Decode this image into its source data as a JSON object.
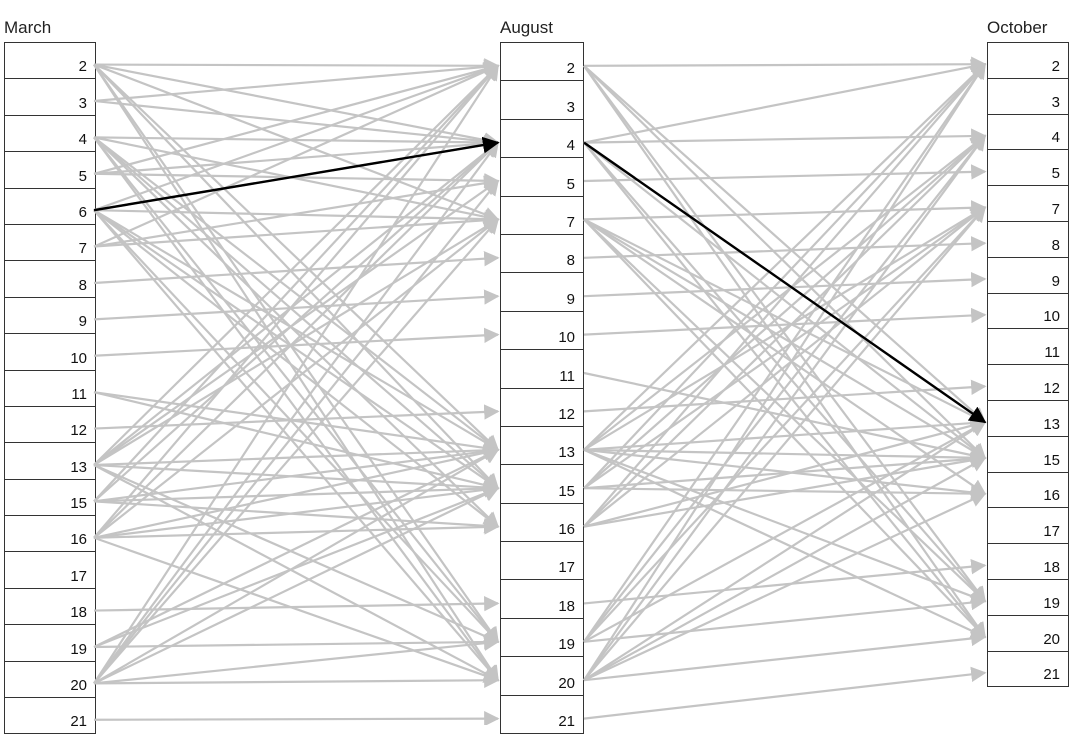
{
  "columns": [
    {
      "title": "March",
      "rows": [
        "2",
        "3",
        "4",
        "5",
        "6",
        "7",
        "8",
        "9",
        "10",
        "11",
        "12",
        "13",
        "15",
        "16",
        "17",
        "18",
        "19",
        "20",
        "21"
      ]
    },
    {
      "title": "August",
      "rows": [
        "2",
        "3",
        "4",
        "5",
        "7",
        "8",
        "9",
        "10",
        "11",
        "12",
        "13",
        "15",
        "16",
        "17",
        "18",
        "19",
        "20",
        "21"
      ]
    },
    {
      "title": "October",
      "rows": [
        "2",
        "3",
        "4",
        "5",
        "7",
        "8",
        "9",
        "10",
        "11",
        "12",
        "13",
        "15",
        "16",
        "17",
        "18",
        "19",
        "20",
        "21"
      ]
    }
  ],
  "colors": {
    "default_arrow": "#c4c4c4",
    "highlight_arrow": "#000000",
    "cell_border": "#333333"
  },
  "highlighted_path": [
    {
      "from": "March 6",
      "to": "August 4"
    },
    {
      "from": "August 4",
      "to": "October 13"
    }
  ],
  "edges_march_august": [
    [
      "2",
      "2"
    ],
    [
      "2",
      "4"
    ],
    [
      "2",
      "7"
    ],
    [
      "2",
      "13"
    ],
    [
      "2",
      "15"
    ],
    [
      "2",
      "19"
    ],
    [
      "2",
      "20"
    ],
    [
      "3",
      "4"
    ],
    [
      "3",
      "2"
    ],
    [
      "4",
      "4"
    ],
    [
      "4",
      "7"
    ],
    [
      "4",
      "13"
    ],
    [
      "4",
      "15"
    ],
    [
      "4",
      "16"
    ],
    [
      "4",
      "19"
    ],
    [
      "4",
      "20"
    ],
    [
      "5",
      "2"
    ],
    [
      "5",
      "5"
    ],
    [
      "5",
      "4"
    ],
    [
      "6",
      "4"
    ],
    [
      "6",
      "7"
    ],
    [
      "6",
      "13"
    ],
    [
      "6",
      "15"
    ],
    [
      "6",
      "16"
    ],
    [
      "6",
      "19"
    ],
    [
      "6",
      "20"
    ],
    [
      "6",
      "2"
    ],
    [
      "7",
      "2"
    ],
    [
      "7",
      "5"
    ],
    [
      "7",
      "7"
    ],
    [
      "8",
      "8"
    ],
    [
      "9",
      "9"
    ],
    [
      "10",
      "10"
    ],
    [
      "11",
      "13"
    ],
    [
      "11",
      "15"
    ],
    [
      "12",
      "12"
    ],
    [
      "13",
      "2"
    ],
    [
      "13",
      "4"
    ],
    [
      "13",
      "5"
    ],
    [
      "13",
      "7"
    ],
    [
      "13",
      "13"
    ],
    [
      "13",
      "15"
    ],
    [
      "13",
      "19"
    ],
    [
      "13",
      "20"
    ],
    [
      "15",
      "2"
    ],
    [
      "15",
      "4"
    ],
    [
      "15",
      "13"
    ],
    [
      "15",
      "15"
    ],
    [
      "15",
      "16"
    ],
    [
      "16",
      "2"
    ],
    [
      "16",
      "4"
    ],
    [
      "16",
      "7"
    ],
    [
      "16",
      "13"
    ],
    [
      "16",
      "15"
    ],
    [
      "16",
      "16"
    ],
    [
      "16",
      "20"
    ],
    [
      "18",
      "18"
    ],
    [
      "19",
      "19"
    ],
    [
      "19",
      "13"
    ],
    [
      "19",
      "15"
    ],
    [
      "20",
      "2"
    ],
    [
      "20",
      "4"
    ],
    [
      "20",
      "5"
    ],
    [
      "20",
      "7"
    ],
    [
      "20",
      "13"
    ],
    [
      "20",
      "15"
    ],
    [
      "20",
      "19"
    ],
    [
      "20",
      "20"
    ],
    [
      "21",
      "21"
    ]
  ],
  "edges_august_october": [
    [
      "2",
      "2"
    ],
    [
      "2",
      "13"
    ],
    [
      "2",
      "15"
    ],
    [
      "2",
      "19"
    ],
    [
      "2",
      "20"
    ],
    [
      "4",
      "2"
    ],
    [
      "4",
      "4"
    ],
    [
      "4",
      "13"
    ],
    [
      "4",
      "19"
    ],
    [
      "4",
      "20"
    ],
    [
      "4",
      "15"
    ],
    [
      "5",
      "5"
    ],
    [
      "7",
      "7"
    ],
    [
      "7",
      "13"
    ],
    [
      "7",
      "15"
    ],
    [
      "7",
      "16"
    ],
    [
      "7",
      "19"
    ],
    [
      "7",
      "20"
    ],
    [
      "8",
      "8"
    ],
    [
      "9",
      "9"
    ],
    [
      "10",
      "10"
    ],
    [
      "11",
      "15"
    ],
    [
      "12",
      "12"
    ],
    [
      "13",
      "2"
    ],
    [
      "13",
      "4"
    ],
    [
      "13",
      "7"
    ],
    [
      "13",
      "13"
    ],
    [
      "13",
      "15"
    ],
    [
      "13",
      "16"
    ],
    [
      "13",
      "19"
    ],
    [
      "13",
      "20"
    ],
    [
      "15",
      "2"
    ],
    [
      "15",
      "4"
    ],
    [
      "15",
      "7"
    ],
    [
      "15",
      "15"
    ],
    [
      "15",
      "16"
    ],
    [
      "16",
      "2"
    ],
    [
      "16",
      "4"
    ],
    [
      "16",
      "7"
    ],
    [
      "16",
      "13"
    ],
    [
      "16",
      "15"
    ],
    [
      "18",
      "18"
    ],
    [
      "19",
      "2"
    ],
    [
      "19",
      "4"
    ],
    [
      "19",
      "7"
    ],
    [
      "19",
      "13"
    ],
    [
      "19",
      "19"
    ],
    [
      "20",
      "2"
    ],
    [
      "20",
      "4"
    ],
    [
      "20",
      "7"
    ],
    [
      "20",
      "13"
    ],
    [
      "20",
      "15"
    ],
    [
      "20",
      "16"
    ],
    [
      "20",
      "20"
    ],
    [
      "21",
      "21"
    ]
  ]
}
